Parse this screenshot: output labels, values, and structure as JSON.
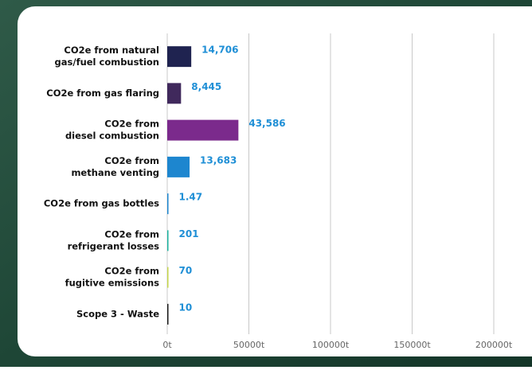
{
  "chart_data": {
    "type": "bar",
    "orientation": "horizontal",
    "categories": [
      [
        "CO2e from natural",
        "gas/fuel combustion"
      ],
      [
        "CO2e from gas flaring"
      ],
      [
        "CO2e from",
        "diesel combustion"
      ],
      [
        "CO2e from",
        "methane venting"
      ],
      [
        "CO2e from gas bottles"
      ],
      [
        "CO2e from",
        "refrigerant losses"
      ],
      [
        "CO2e from",
        "fugitive emissions"
      ],
      [
        "Scope 3 - Waste"
      ]
    ],
    "values": [
      14706,
      8445,
      43586,
      13683,
      1.47,
      201,
      70,
      10
    ],
    "value_labels": [
      "14,706",
      "8,445",
      "43,586",
      "13,683",
      "1.47",
      "201",
      "70",
      "10"
    ],
    "colors": [
      "#1f2350",
      "#40295c",
      "#7b2a8c",
      "#1d86cf",
      "#1d86cf",
      "#1bb39f",
      "#c6d64a",
      "#1a1a1a"
    ],
    "label_color": "#1f8fd6",
    "xlim": [
      0,
      200000
    ],
    "xticks": [
      {
        "value": 0,
        "label": "0t"
      },
      {
        "value": 50000,
        "label": "50000t"
      },
      {
        "value": 100000,
        "label": "100000t"
      },
      {
        "value": 150000,
        "label": "150000t"
      },
      {
        "value": 200000,
        "label": "200000t"
      }
    ],
    "grid": true
  }
}
